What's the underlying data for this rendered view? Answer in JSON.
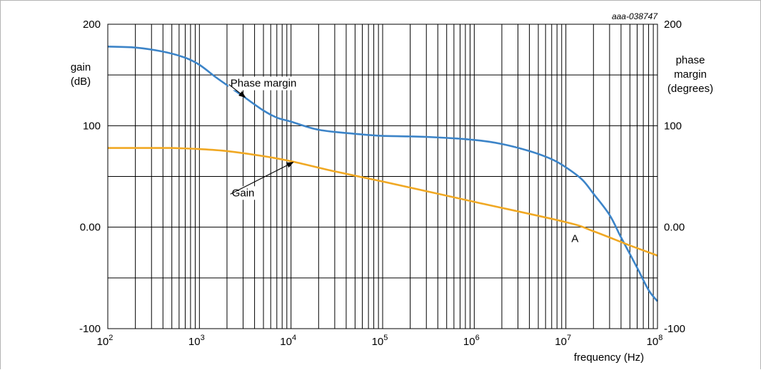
{
  "chart_data": {
    "type": "line",
    "figure_id": "aaa-038747",
    "xlabel": "frequency (Hz)",
    "x_scale": "log",
    "xlim": [
      100,
      100000000
    ],
    "x_ticks": [
      {
        "value": 100,
        "base": "10",
        "exp": "2"
      },
      {
        "value": 1000,
        "base": "10",
        "exp": "3"
      },
      {
        "value": 10000,
        "base": "10",
        "exp": "4"
      },
      {
        "value": 100000,
        "base": "10",
        "exp": "5"
      },
      {
        "value": 1000000,
        "base": "10",
        "exp": "6"
      },
      {
        "value": 10000000,
        "base": "10",
        "exp": "7"
      },
      {
        "value": 100000000,
        "base": "10",
        "exp": "8"
      }
    ],
    "ylim": [
      -100,
      200
    ],
    "y_left": {
      "label_lines": [
        "gain",
        "(dB)"
      ],
      "ticks": [
        {
          "value": 200,
          "label": "200"
        },
        {
          "value": 100,
          "label": "100"
        },
        {
          "value": 0,
          "label": "0.00"
        },
        {
          "value": -100,
          "label": "-100"
        }
      ]
    },
    "y_right": {
      "label_lines": [
        "phase",
        "margin",
        "(degrees)"
      ],
      "ticks": [
        {
          "value": 200,
          "label": "200"
        },
        {
          "value": 100,
          "label": "100"
        },
        {
          "value": 0,
          "label": "0.00"
        },
        {
          "value": -100,
          "label": "-100"
        }
      ]
    },
    "grid": true,
    "series": [
      {
        "name": "Phase margin",
        "color": "#3c84c8",
        "points": [
          [
            100,
            178
          ],
          [
            200,
            177
          ],
          [
            400,
            173
          ],
          [
            700,
            167
          ],
          [
            1000,
            160
          ],
          [
            1500,
            148
          ],
          [
            2000,
            140
          ],
          [
            3000,
            129
          ],
          [
            5000,
            115
          ],
          [
            7000,
            108
          ],
          [
            10000,
            104
          ],
          [
            20000,
            96
          ],
          [
            50000,
            92
          ],
          [
            100000,
            90
          ],
          [
            300000,
            89
          ],
          [
            1000000,
            86
          ],
          [
            2000000,
            82
          ],
          [
            4000000,
            75
          ],
          [
            7000000,
            67
          ],
          [
            10000000,
            59
          ],
          [
            15000000,
            47
          ],
          [
            20000000,
            33
          ],
          [
            30000000,
            12
          ],
          [
            40000000,
            -10
          ],
          [
            60000000,
            -40
          ],
          [
            80000000,
            -62
          ],
          [
            100000000,
            -73
          ]
        ]
      },
      {
        "name": "Gain",
        "color": "#f0a823",
        "points": [
          [
            100,
            78
          ],
          [
            300,
            78
          ],
          [
            500,
            78
          ],
          [
            1000,
            77
          ],
          [
            2000,
            75
          ],
          [
            5000,
            70
          ],
          [
            10000,
            65
          ],
          [
            30000,
            55
          ],
          [
            100000,
            45
          ],
          [
            1000000,
            25
          ],
          [
            10000000,
            5
          ],
          [
            20000000,
            -4
          ],
          [
            50000000,
            -18
          ],
          [
            100000000,
            -28
          ]
        ]
      }
    ],
    "annotations": [
      {
        "text": "Phase margin",
        "target_series": "Phase margin",
        "target": [
          3000,
          128
        ],
        "label_at": [
          5000,
          142
        ]
      },
      {
        "text": "Gain",
        "target_series": "Gain",
        "target": [
          10000,
          64
        ],
        "label_at": [
          3000,
          34
        ]
      },
      {
        "text": "A",
        "target": [
          14000000,
          0
        ]
      }
    ]
  }
}
